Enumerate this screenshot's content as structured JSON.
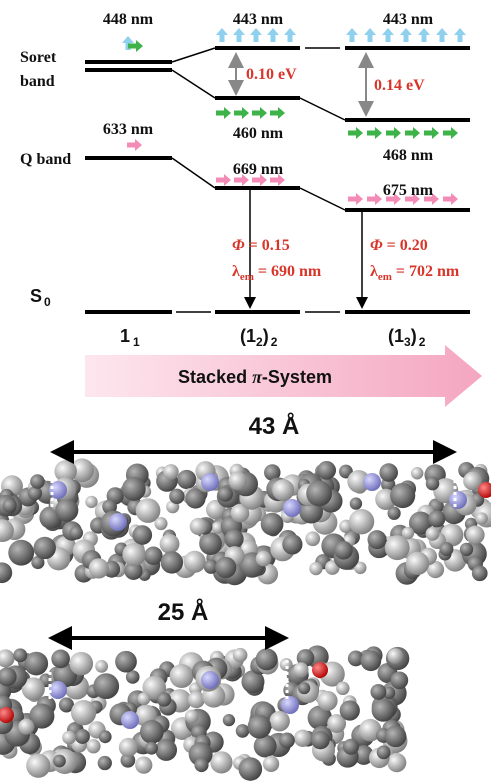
{
  "diagram": {
    "levels": {
      "soret_wavelength_1": "448 nm",
      "soret_wavelength_2": "443 nm",
      "soret_wavelength_3": "443 nm",
      "soret_label": [
        "Soret",
        "band"
      ],
      "split_2": "0.10 eV",
      "split_3": "0.14 eV",
      "lower_wavelength_2": "460 nm",
      "lower_wavelength_3": "468 nm",
      "q_wavelength_1": "633 nm",
      "q_label": "Q band",
      "q_wavelength_2": "669 nm",
      "q_wavelength_3": "675 nm",
      "ground_label": {
        "main": "S",
        "sub": "0"
      }
    },
    "emission": [
      {
        "phi": [
          "Φ",
          " = 0.15"
        ],
        "lambda": [
          "λ",
          "em",
          " = 690 nm"
        ]
      },
      {
        "phi": [
          "Φ",
          " = 0.20"
        ],
        "lambda": [
          "λ",
          "em",
          " = 702 nm"
        ]
      }
    ],
    "species": [
      {
        "main": "1",
        "sub": "1"
      },
      {
        "main": "(1",
        "sub": "2",
        "end": ")",
        "sub2": "2"
      },
      {
        "main": "(1",
        "sub": "3",
        "end": ")",
        "sub2": "2"
      }
    ],
    "arrow_label": [
      "Stacked ",
      "π",
      "-System"
    ],
    "distances": [
      "43 Å",
      "25 Å"
    ]
  }
}
